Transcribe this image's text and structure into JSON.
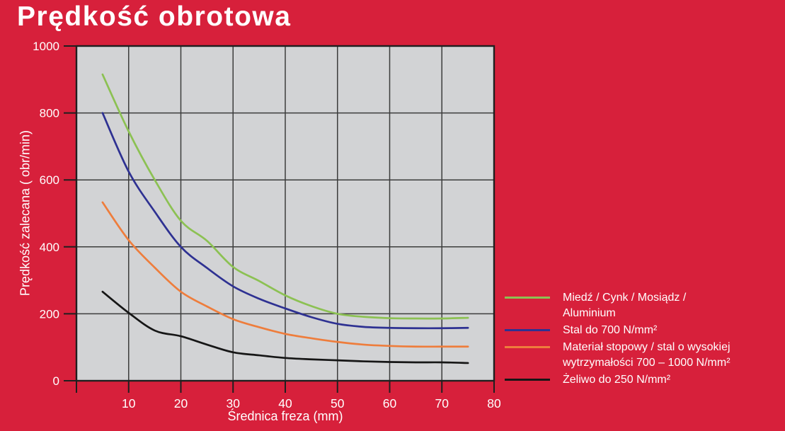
{
  "page": {
    "title": "Prędkość obrotowa",
    "background_color": "#d7203b",
    "text_color": "#ffffff"
  },
  "chart_data": {
    "type": "line",
    "title": "Prędkość obrotowa",
    "xlabel": "Średnica freza (mm)",
    "ylabel": "Prędkość zalecana ( obr/min)",
    "xlim": [
      0,
      80
    ],
    "ylim": [
      0,
      1000
    ],
    "x_ticks": [
      10,
      20,
      30,
      40,
      50,
      60,
      70,
      80
    ],
    "y_ticks": [
      0,
      200,
      400,
      600,
      800,
      1000
    ],
    "grid": true,
    "plot_bg_color": "#d2d3d5",
    "grid_color": "#3c3c3c",
    "axis_color": "#1f1f1f",
    "tick_label_color": "#ffffff",
    "legend_position": "right",
    "x": [
      5,
      10,
      15,
      20,
      25,
      30,
      35,
      40,
      45,
      50,
      55,
      60,
      65,
      70,
      75
    ],
    "series": [
      {
        "name": "Miedź / Cynk / Mosiądz / Aluminium",
        "color": "#8cc153",
        "values": [
          915,
          745,
          600,
          478,
          418,
          340,
          298,
          255,
          223,
          200,
          191,
          187,
          186,
          186,
          188
        ]
      },
      {
        "name": "Stal do 700 N/mm²",
        "color": "#2e3192",
        "values": [
          800,
          625,
          505,
          400,
          337,
          282,
          245,
          216,
          190,
          170,
          161,
          158,
          157,
          157,
          158
        ]
      },
      {
        "name": "Materiał stopowy / stal o wysokiej wytrzymałości 700 – 1000 N/mm²",
        "color": "#ee7d3c",
        "values": [
          533,
          420,
          338,
          266,
          222,
          184,
          160,
          140,
          127,
          116,
          108,
          104,
          102,
          102,
          102
        ]
      },
      {
        "name": "Żeliwo do 250 N/mm²",
        "color": "#161616",
        "values": [
          266,
          203,
          150,
          133,
          108,
          85,
          76,
          68,
          64,
          61,
          58,
          56,
          55,
          55,
          53
        ]
      }
    ],
    "legend": {
      "items": [
        {
          "lines": [
            "Miedź / Cynk / Mosiądz /",
            "Aluminium"
          ],
          "color": "#8cc153"
        },
        {
          "lines": [
            "Stal do 700 N/mm²"
          ],
          "color": "#2e3192"
        },
        {
          "lines": [
            "Materiał stopowy / stal o wysokiej",
            "wytrzymałości 700 – 1000 N/mm²"
          ],
          "color": "#ee7d3c"
        },
        {
          "lines": [
            "Żeliwo do 250 N/mm²"
          ],
          "color": "#161616"
        }
      ]
    }
  }
}
